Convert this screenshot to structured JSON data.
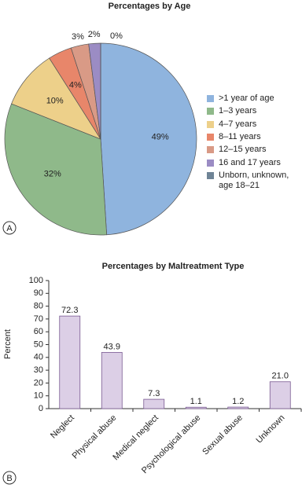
{
  "chart_data": [
    {
      "type": "pie",
      "title": "Percentages by Age",
      "panel_label": "A",
      "categories": [
        ">1 year of age",
        "1–3 years",
        "4–7 years",
        "8–11 years",
        "12–15 years",
        "16 and 17 years",
        "Unborn, unknown, age 18–21"
      ],
      "values": [
        49,
        32,
        10,
        4,
        3,
        2,
        0
      ],
      "value_labels": [
        "49%",
        "32%",
        "10%",
        "4%",
        "3%",
        "2%",
        "0%"
      ],
      "colors": [
        "#8fb4de",
        "#8fb98a",
        "#edd08a",
        "#e8866a",
        "#d99a86",
        "#9b8cc4",
        "#6f8496"
      ]
    },
    {
      "type": "bar",
      "title": "Percentages by Maltreatment Type",
      "panel_label": "B",
      "ylabel": "Percent",
      "categories": [
        "Neglect",
        "Physical abuse",
        "Medical neglect",
        "Psychological abuse",
        "Sexual abuse",
        "Unknown"
      ],
      "values": [
        72.3,
        43.9,
        7.3,
        1.1,
        1.2,
        21.0
      ],
      "value_labels": [
        "72.3",
        "43.9",
        "7.3",
        "1.1",
        "1.2",
        "21.0"
      ],
      "color": "#dccfe6",
      "edge_color": "#7a5a92",
      "ylim": [
        0,
        100
      ],
      "yticks": [
        0,
        10,
        20,
        30,
        40,
        50,
        60,
        70,
        80,
        90,
        100
      ]
    }
  ]
}
